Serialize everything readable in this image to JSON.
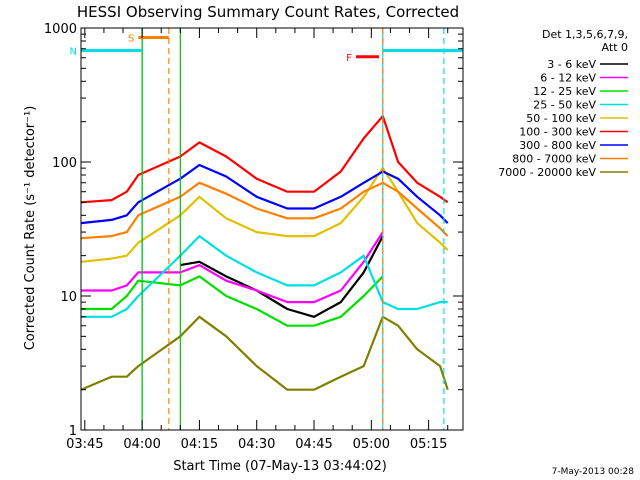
{
  "chart_data": {
    "type": "line",
    "title": "HESSI Observing Summary Count Rates, Corrected",
    "xlabel": "Start Time (07-May-13 03:44:02)",
    "ylabel": "Corrected Count Rate (s⁻¹ detector⁻¹)",
    "y_scale": "log",
    "ylim": [
      1,
      1000
    ],
    "xlim": [
      "03:44",
      "05:24"
    ],
    "x_ticks": [
      "03:45",
      "04:00",
      "04:15",
      "04:30",
      "04:45",
      "05:00",
      "05:15"
    ],
    "y_ticks": [
      "1",
      "10",
      "100",
      "1000"
    ],
    "footer": "7-May-2013 00:28",
    "legend": {
      "placement": "right",
      "header_line1": "Det 1,3,5,6,7,9,",
      "header_line2": "Att 0"
    },
    "flags": [
      {
        "label": "S",
        "color": "#ff8000",
        "start": "03:59",
        "end": "04:07",
        "level": 850
      },
      {
        "label": "N",
        "color": "#00e0e0",
        "start": "03:44",
        "end": "04:00",
        "level": 680
      },
      {
        "label": "F",
        "color": "#ff0000",
        "start": "04:56",
        "end": "05:02",
        "level": 610
      },
      {
        "label": "",
        "color": "#00e0e0",
        "start": "05:03",
        "end": "05:24",
        "level": 680
      }
    ],
    "vlines": [
      {
        "t": "04:00",
        "color": "#00e0e0",
        "style": "solid"
      },
      {
        "t": "04:00",
        "color": "#00c000",
        "style": "solid"
      },
      {
        "t": "04:07",
        "color": "#ff8000",
        "style": "dashed"
      },
      {
        "t": "04:10",
        "color": "#00c000",
        "style": "solid"
      },
      {
        "t": "05:03",
        "color": "#00e0e0",
        "style": "solid"
      },
      {
        "t": "05:03",
        "color": "#ff8000",
        "style": "dashed"
      },
      {
        "t": "05:19",
        "color": "#00e0e0",
        "style": "dashed"
      }
    ],
    "x": [
      "03:44",
      "03:52",
      "03:56",
      "03:59",
      "04:10",
      "04:15",
      "04:22",
      "04:30",
      "04:38",
      "04:45",
      "04:52",
      "04:58",
      "05:03",
      "05:07",
      "05:12",
      "05:18",
      "05:20"
    ],
    "series": [
      {
        "name": "3 - 6 keV",
        "color": "#000000",
        "values": [
          null,
          null,
          null,
          null,
          17,
          18,
          14,
          11,
          8,
          7,
          9,
          15,
          28,
          null,
          null,
          null,
          null
        ]
      },
      {
        "name": "6 - 12 keV",
        "color": "#ff00ff",
        "values": [
          11,
          11,
          12,
          15,
          15,
          17,
          13,
          11,
          9,
          9,
          11,
          18,
          30,
          null,
          null,
          null,
          null
        ]
      },
      {
        "name": "12 - 25 keV",
        "color": "#00e000",
        "values": [
          8,
          8,
          10,
          13,
          12,
          14,
          10,
          8,
          6,
          6,
          7,
          10,
          14,
          null,
          null,
          null,
          null
        ]
      },
      {
        "name": "25 - 50 keV",
        "color": "#00e0e0",
        "values": [
          7,
          7,
          8,
          10,
          20,
          28,
          20,
          15,
          12,
          12,
          15,
          20,
          9,
          8,
          8,
          9,
          9
        ]
      },
      {
        "name": "50 - 100 keV",
        "color": "#e0c000",
        "values": [
          18,
          19,
          20,
          25,
          40,
          55,
          38,
          30,
          28,
          28,
          35,
          55,
          90,
          60,
          35,
          25,
          22
        ]
      },
      {
        "name": "100 - 300 keV",
        "color": "#ff0000",
        "values": [
          50,
          52,
          60,
          80,
          110,
          140,
          110,
          75,
          60,
          60,
          85,
          150,
          220,
          100,
          70,
          55,
          50
        ]
      },
      {
        "name": "300 - 800 keV",
        "color": "#0000ff",
        "values": [
          35,
          37,
          40,
          50,
          75,
          95,
          78,
          55,
          45,
          45,
          55,
          70,
          85,
          75,
          55,
          40,
          35
        ]
      },
      {
        "name": "800 - 7000 keV",
        "color": "#ff8000",
        "values": [
          27,
          28,
          30,
          40,
          55,
          70,
          58,
          45,
          38,
          38,
          45,
          60,
          70,
          60,
          45,
          32,
          28
        ]
      },
      {
        "name": "7000 - 20000 keV",
        "color": "#808000",
        "values": [
          2,
          2.5,
          2.5,
          3,
          5,
          7,
          5,
          3,
          2,
          2,
          2.5,
          3,
          7,
          6,
          4,
          3,
          2
        ]
      }
    ]
  }
}
